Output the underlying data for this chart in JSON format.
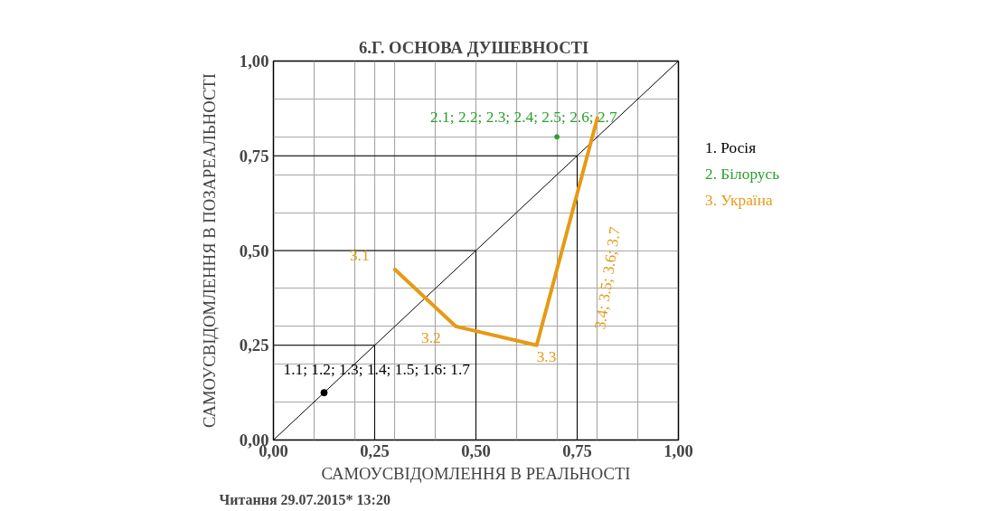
{
  "chart_data": {
    "type": "scatter",
    "title": "6.Г.  ОСНОВА ДУШЕВНОСТІ",
    "xlabel": "САМОУСВІДОМЛЕННЯ В РЕАЛЬНОСТІ",
    "ylabel": "САМОУСВІДОМЛЕННЯ В ПОЗАРЕАЛЬНОСТІ",
    "xlim": [
      0,
      1
    ],
    "ylim": [
      0,
      1
    ],
    "xticks": [
      {
        "value": 0,
        "label": "0,00"
      },
      {
        "value": 0.1,
        "label": null
      },
      {
        "value": 0.2,
        "label": null
      },
      {
        "value": 0.25,
        "label": "0,25"
      },
      {
        "value": 0.3,
        "label": null
      },
      {
        "value": 0.4,
        "label": null
      },
      {
        "value": 0.5,
        "label": "0,50"
      },
      {
        "value": 0.6,
        "label": null
      },
      {
        "value": 0.7,
        "label": null
      },
      {
        "value": 0.75,
        "label": "0,75"
      },
      {
        "value": 0.8,
        "label": null
      },
      {
        "value": 0.9,
        "label": null
      },
      {
        "value": 1,
        "label": "1,00"
      }
    ],
    "yticks": [
      {
        "value": 0,
        "label": "0,00"
      },
      {
        "value": 0.1,
        "label": null
      },
      {
        "value": 0.2,
        "label": null
      },
      {
        "value": 0.25,
        "label": "0,25"
      },
      {
        "value": 0.3,
        "label": null
      },
      {
        "value": 0.4,
        "label": null
      },
      {
        "value": 0.5,
        "label": "0,50"
      },
      {
        "value": 0.6,
        "label": null
      },
      {
        "value": 0.7,
        "label": null
      },
      {
        "value": 0.75,
        "label": "0,75"
      },
      {
        "value": 0.8,
        "label": null
      },
      {
        "value": 0.9,
        "label": null
      },
      {
        "value": 1,
        "label": "1,00"
      }
    ],
    "grid": true,
    "series": [
      {
        "type": "line",
        "color": "#000000",
        "x": [
          0,
          1
        ],
        "values": [
          0,
          1
        ]
      },
      {
        "type": "line",
        "color": "#000000",
        "x": [
          0,
          0.25,
          0.25
        ],
        "values": [
          0.25,
          0.25,
          0
        ]
      },
      {
        "type": "line",
        "color": "#000000",
        "x": [
          0,
          0.5,
          0.5
        ],
        "values": [
          0.5,
          0.5,
          0
        ]
      },
      {
        "type": "line",
        "color": "#000000",
        "x": [
          0,
          0.75,
          0.75
        ],
        "values": [
          0.75,
          0.75,
          0
        ]
      },
      {
        "name": "1. Росія",
        "color": "#000000",
        "marker": "circle",
        "x": [
          0.125
        ],
        "values": [
          0.125
        ]
      },
      {
        "name": "2. Білорусь",
        "color": "#2ca02c",
        "marker": "circle",
        "x": [
          0.7
        ],
        "values": [
          0.8
        ]
      },
      {
        "type": "line",
        "name": "3. Україна",
        "color": "#e69a14",
        "x": [
          0.3,
          0.45,
          0.65,
          0.8
        ],
        "values": [
          0.45,
          0.3,
          0.25,
          0.85
        ]
      }
    ],
    "annotations": [
      {
        "text": "1.1; 1.2; 1.3; 1.4; 1.5; 1.6: 1.7",
        "x": 0.125,
        "y": 0.125
      },
      {
        "text": "2.1; 2.2; 2.3; 2.4; 2.5; 2.6; 2.7",
        "x": 0.7,
        "y": 0.8
      },
      {
        "text": "3.1",
        "x": 0.3,
        "y": 0.45
      },
      {
        "text": "3.2",
        "x": 0.45,
        "y": 0.3
      },
      {
        "text": "3.3",
        "x": 0.65,
        "y": 0.25
      },
      "3.4; 3.5; 3.6; 3.7",
      "Читання 29.07.2015* 13:20"
    ]
  }
}
